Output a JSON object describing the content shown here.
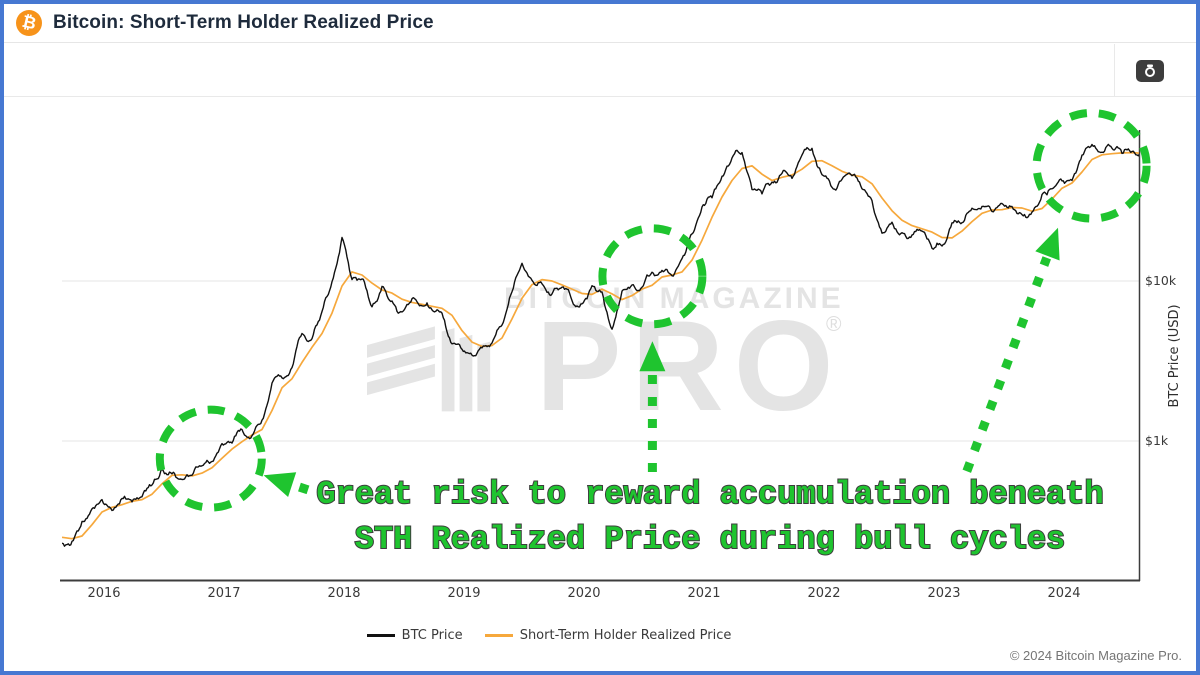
{
  "header": {
    "title": "Bitcoin: Short-Term Holder Realized Price",
    "logo_symbol": "₿",
    "logo_color": "#f7931a"
  },
  "toolbar": {
    "camera_button_icon": "camera"
  },
  "watermark": {
    "top": "BITCOIN MAGAZINE",
    "main": "PRO",
    "registered_mark": "®"
  },
  "annotation": {
    "line1": "Great risk to reward accumulation beneath",
    "line2": "STH Realized Price during bull cycles",
    "color": "#1fc42f",
    "outline_color": "#3d3d3d",
    "circles": [
      {
        "name": "early-2017-accumulation",
        "year": 2016.89,
        "price": 776,
        "r": 51
      },
      {
        "name": "late-2020-accumulation",
        "year": 2020.57,
        "price": 10700,
        "r": 50
      },
      {
        "name": "2024-accumulation",
        "year": 2024.23,
        "price": 52500,
        "r": 55
      }
    ],
    "arrows": [
      {
        "name": "pointer-to-2016-circle",
        "from_year": 2017.7,
        "from_price": 495,
        "to_year": 2017.33,
        "to_price": 610
      },
      {
        "name": "pointer-to-2020-circle",
        "from_year": 2020.57,
        "from_price": 640,
        "to_year": 2020.57,
        "to_price": 4200
      },
      {
        "name": "pointer-to-2024-circle",
        "from_year": 2023.19,
        "from_price": 647,
        "to_year": 2023.95,
        "to_price": 21500
      }
    ]
  },
  "chart_data": {
    "type": "line",
    "title": "Bitcoin: Short-Term Holder Realized Price",
    "ylabel": "BTC Price (USD)",
    "x_axis": {
      "ticks": [
        2016,
        2017,
        2018,
        2019,
        2020,
        2021,
        2022,
        2023,
        2024
      ],
      "range": [
        2015.65,
        2024.65
      ]
    },
    "y_axis": {
      "scale": "log",
      "ticks": [
        {
          "label": "$10k",
          "value": 10000
        },
        {
          "label": "$1k",
          "value": 1000
        }
      ],
      "range": [
        133,
        85000
      ]
    },
    "grid": {
      "horizontal_at": [
        10000,
        1000
      ]
    },
    "legend_position": "bottom-center",
    "sampling": "monthly",
    "x_start_decimal_year": 2015.65,
    "x_step_years": 0.083333,
    "series": [
      {
        "name": "BTC Price",
        "color": "#111111",
        "values": [
          230,
          236,
          314,
          377,
          430,
          368,
          437,
          416,
          448,
          531,
          672,
          624,
          575,
          610,
          700,
          745,
          963,
          970,
          1180,
          1080,
          1350,
          2300,
          2480,
          2875,
          4700,
          4360,
          6450,
          9900,
          18700,
          10200,
          10300,
          6900,
          9250,
          7500,
          6400,
          7750,
          7000,
          6600,
          6300,
          4050,
          3740,
          3440,
          3820,
          4100,
          5300,
          8560,
          12900,
          10100,
          9600,
          8300,
          9150,
          7550,
          7200,
          9350,
          8550,
          5000,
          8650,
          9450,
          9140,
          11350,
          11650,
          10780,
          13800,
          19700,
          29000,
          33100,
          45100,
          58800,
          63500,
          37300,
          35000,
          41500,
          47100,
          43800,
          61300,
          67500,
          46200,
          38500,
          43200,
          45500,
          37700,
          31800,
          19900,
          23300,
          20050,
          19400,
          20500,
          16000,
          16550,
          23100,
          23150,
          28500,
          29250,
          27200,
          30500,
          29200,
          26000,
          26950,
          34650,
          37700,
          42250,
          42550,
          61200,
          71300,
          63800,
          67500,
          62700,
          64600,
          59000,
          61000
        ]
      },
      {
        "name": "Short-Term Holder Realized Price",
        "color": "#f6a83c",
        "values": [
          250,
          245,
          255,
          300,
          360,
          385,
          400,
          420,
          430,
          465,
          540,
          610,
          615,
          605,
          630,
          680,
          780,
          890,
          990,
          1090,
          1180,
          1550,
          2150,
          2450,
          3100,
          3850,
          4700,
          6300,
          9300,
          11400,
          10900,
          9700,
          8800,
          8400,
          7700,
          7350,
          7150,
          6950,
          6750,
          6100,
          4900,
          4150,
          3900,
          3950,
          4400,
          5800,
          7800,
          9500,
          10200,
          10000,
          9450,
          8900,
          8350,
          8250,
          8900,
          8300,
          7650,
          8100,
          8900,
          9400,
          10600,
          10900,
          11400,
          13500,
          18000,
          25000,
          33500,
          42500,
          50500,
          52500,
          46500,
          42500,
          44500,
          46000,
          50000,
          56000,
          56500,
          52500,
          48500,
          46000,
          44800,
          40500,
          33000,
          27500,
          24000,
          22200,
          21200,
          20200,
          18700,
          18600,
          20500,
          23500,
          26500,
          27800,
          27900,
          28800,
          28600,
          27300,
          28400,
          32500,
          38000,
          41000,
          48000,
          57500,
          61500,
          62500,
          63200,
          63500,
          62800,
          62000
        ]
      }
    ]
  },
  "footer": {
    "copyright": "© 2024 Bitcoin Magazine Pro."
  }
}
